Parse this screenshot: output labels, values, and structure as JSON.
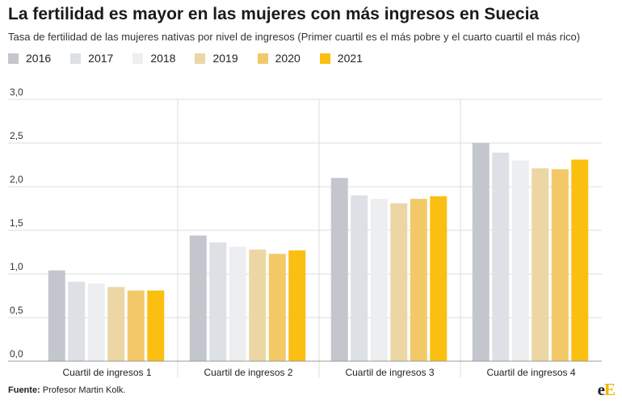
{
  "title": "La fertilidad es mayor en las mujeres con más ingresos en Suecia",
  "subtitle": "Tasa de fertilidad de las mujeres nativas por nivel de ingresos (Primer cuartil es el más pobre y el cuarto cuartil el más rico)",
  "footer": {
    "source_label": "Fuente:",
    "source_text": " Profesor Martin Kolk."
  },
  "logo": {
    "e": "e",
    "E": "E"
  },
  "colors": {
    "grid": "#dcdcdc",
    "axis": "#999999",
    "tick_text": "#333333"
  },
  "chart_data": {
    "type": "bar",
    "title": "La fertilidad es mayor en las mujeres con más ingresos en Suecia",
    "subtitle": "Tasa de fertilidad de las mujeres nativas por nivel de ingresos (Primer cuartil es el más pobre y el cuarto cuartil el más rico)",
    "xlabel": "",
    "ylabel": "",
    "categories": [
      "Cuartil de ingresos 1",
      "Cuartil de ingresos 2",
      "Cuartil de ingresos 3",
      "Cuartil de ingresos 4"
    ],
    "ylim": [
      0,
      3.0
    ],
    "yticks": [
      "0,0",
      "0,5",
      "1,0",
      "1,5",
      "2,0",
      "2,5",
      "3,0"
    ],
    "ytick_values": [
      0,
      0.5,
      1.0,
      1.5,
      2.0,
      2.5,
      3.0
    ],
    "grid": true,
    "legend_position": "top-left",
    "series": [
      {
        "name": "2016",
        "color": "#c3c7cd",
        "values": [
          1.04,
          1.44,
          2.1,
          2.5
        ]
      },
      {
        "name": "2017",
        "color": "#dde0e4",
        "values": [
          0.91,
          1.36,
          1.9,
          2.39
        ]
      },
      {
        "name": "2018",
        "color": "#eceef0",
        "values": [
          0.89,
          1.31,
          1.86,
          2.3
        ]
      },
      {
        "name": "2019",
        "color": "#ecd7a4",
        "values": [
          0.85,
          1.28,
          1.81,
          2.21
        ]
      },
      {
        "name": "2020",
        "color": "#f3c968",
        "values": [
          0.81,
          1.23,
          1.86,
          2.2
        ]
      },
      {
        "name": "2021",
        "color": "#fbbf12",
        "values": [
          0.81,
          1.27,
          1.89,
          2.31
        ]
      }
    ]
  }
}
